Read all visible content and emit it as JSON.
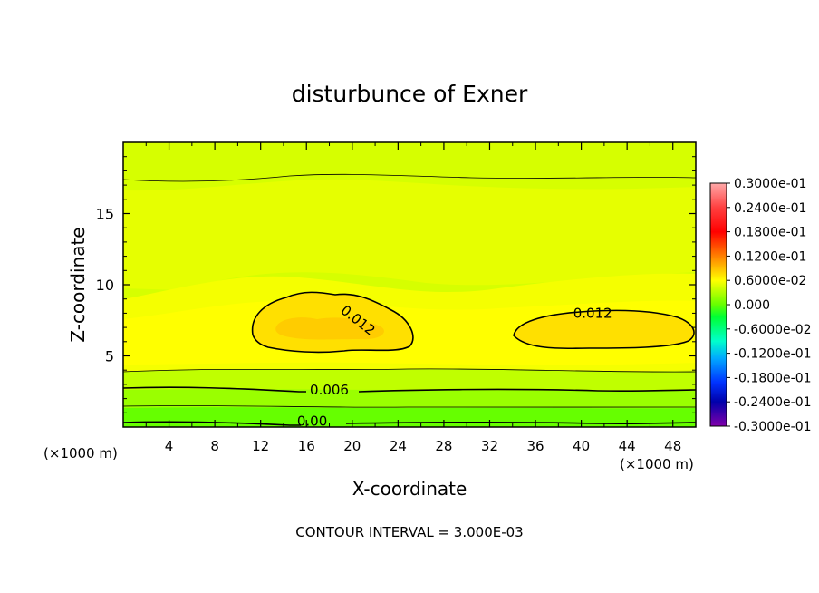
{
  "chart_data": {
    "type": "heatmap",
    "title": "disturbunce of Exner",
    "xlabel": "X-coordinate",
    "ylabel": "Z-coordinate",
    "x_unit_left": "(×1000 m)",
    "x_unit_right": "(×1000 m)",
    "xlim": [
      0,
      50
    ],
    "ylim": [
      0,
      20
    ],
    "x_ticks": [
      4,
      8,
      12,
      16,
      20,
      24,
      28,
      32,
      36,
      40,
      44,
      48
    ],
    "y_ticks": [
      5,
      10,
      15
    ],
    "colorbar": {
      "labels": [
        "0.3000e-01",
        "0.2400e-01",
        "0.1800e-01",
        "0.1200e-01",
        "0.6000e-02",
        "0.000",
        "-0.6000e-02",
        "-0.1200e-01",
        "-0.1800e-01",
        "-0.2400e-01",
        "-0.3000e-01"
      ],
      "values": [
        0.03,
        0.024,
        0.018,
        0.012,
        0.006,
        0.0,
        -0.006,
        -0.012,
        -0.018,
        -0.024,
        -0.03
      ],
      "range": [
        -0.03,
        0.03
      ]
    },
    "contour_labels": [
      {
        "text": "0.012",
        "x": 20.5,
        "z": 7.5,
        "angle": 38
      },
      {
        "text": "0.012",
        "x": 41,
        "z": 8.0,
        "angle": 0
      },
      {
        "text": "0.006",
        "x": 18,
        "z": 2.6,
        "angle": 0
      },
      {
        "text": "0.00",
        "x": 16.5,
        "z": 0.4,
        "angle": 0
      }
    ],
    "footer": "CONTOUR INTERVAL = 3.000E-03",
    "contour_interval": 0.003
  }
}
